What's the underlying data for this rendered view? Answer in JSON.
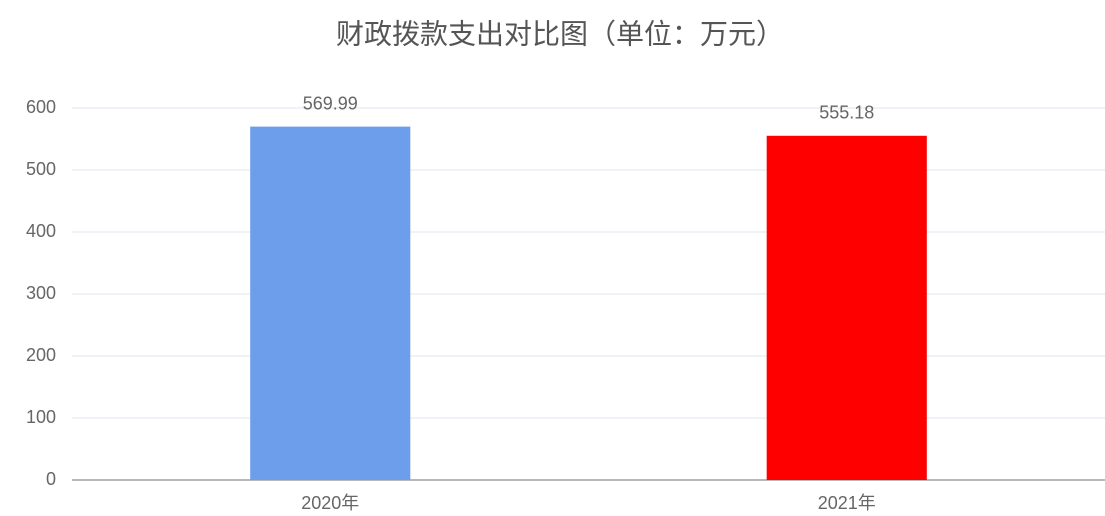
{
  "chart_data": {
    "type": "bar",
    "title": "财政拨款支出对比图（单位：万元）",
    "categories": [
      "2020年",
      "2021年"
    ],
    "values": [
      569.99,
      555.18
    ],
    "colors": [
      "#6d9eeb",
      "#ff0000"
    ],
    "ylim": [
      0,
      600
    ],
    "yticks": [
      0,
      100,
      200,
      300,
      400,
      500,
      600
    ],
    "grid": true
  }
}
